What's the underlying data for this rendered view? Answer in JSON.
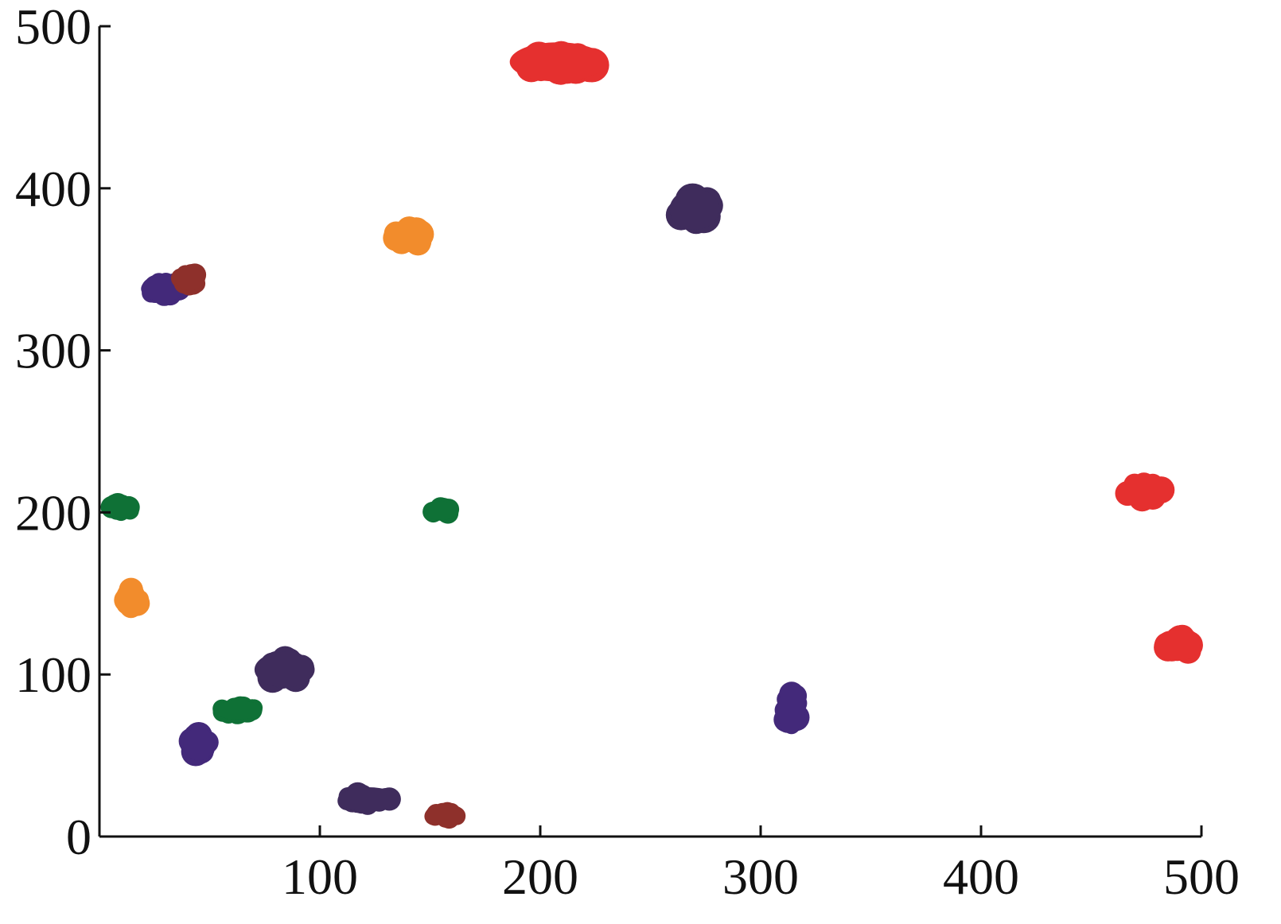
{
  "chart_data": {
    "type": "scatter",
    "title": "",
    "xlabel": "",
    "ylabel": "",
    "xlim": [
      0,
      500
    ],
    "ylim": [
      0,
      500
    ],
    "xticks": [
      "100",
      "200",
      "300",
      "400",
      "500"
    ],
    "yticks": [
      "0",
      "100",
      "200",
      "300",
      "400",
      "500"
    ],
    "grid": false,
    "legend": "none",
    "colors": {
      "red": "#e5302f",
      "dark_purple": "#3f2c5c",
      "indigo": "#43297a",
      "orange": "#f28c2c",
      "green": "#0f7136",
      "maroon": "#8e302b"
    },
    "series": [
      {
        "color": "red",
        "clusters": [
          {
            "x": 208,
            "y": 478,
            "w": 56,
            "h": 31
          },
          {
            "x": 474,
            "y": 213,
            "w": 30,
            "h": 23
          },
          {
            "x": 490,
            "y": 118,
            "w": 23,
            "h": 24
          }
        ]
      },
      {
        "color": "dark_purple",
        "clusters": [
          {
            "x": 270,
            "y": 387,
            "w": 29,
            "h": 32
          },
          {
            "x": 84,
            "y": 103,
            "w": 35,
            "h": 28
          },
          {
            "x": 122,
            "y": 23,
            "w": 35,
            "h": 19
          }
        ]
      },
      {
        "color": "indigo",
        "clusters": [
          {
            "x": 29,
            "y": 338,
            "w": 26,
            "h": 20
          },
          {
            "x": 45,
            "y": 57,
            "w": 18,
            "h": 26
          },
          {
            "x": 314,
            "y": 78,
            "w": 16,
            "h": 38
          }
        ]
      },
      {
        "color": "orange",
        "clusters": [
          {
            "x": 140,
            "y": 370,
            "w": 28,
            "h": 24
          },
          {
            "x": 15,
            "y": 147,
            "w": 15,
            "h": 26
          }
        ]
      },
      {
        "color": "green",
        "clusters": [
          {
            "x": 10,
            "y": 203,
            "w": 19,
            "h": 16
          },
          {
            "x": 155,
            "y": 201,
            "w": 17,
            "h": 15
          },
          {
            "x": 63,
            "y": 78,
            "w": 28,
            "h": 15
          }
        ]
      },
      {
        "color": "maroon",
        "clusters": [
          {
            "x": 41,
            "y": 344,
            "w": 17,
            "h": 18
          },
          {
            "x": 157,
            "y": 13,
            "w": 21,
            "h": 14
          }
        ]
      }
    ]
  }
}
